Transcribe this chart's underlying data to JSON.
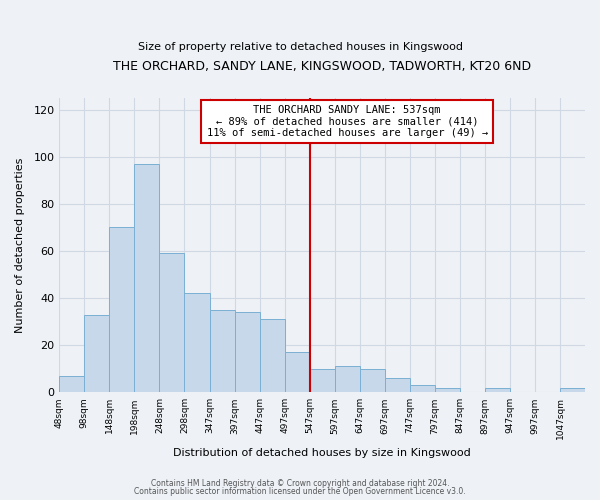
{
  "title": "THE ORCHARD, SANDY LANE, KINGSWOOD, TADWORTH, KT20 6ND",
  "subtitle": "Size of property relative to detached houses in Kingswood",
  "xlabel": "Distribution of detached houses by size in Kingswood",
  "ylabel": "Number of detached properties",
  "bar_color": "#c8d8eb",
  "bar_edge_color": "#7ab0d4",
  "bins": [
    "48sqm",
    "98sqm",
    "148sqm",
    "198sqm",
    "248sqm",
    "298sqm",
    "347sqm",
    "397sqm",
    "447sqm",
    "497sqm",
    "547sqm",
    "597sqm",
    "647sqm",
    "697sqm",
    "747sqm",
    "797sqm",
    "847sqm",
    "897sqm",
    "947sqm",
    "997sqm",
    "1047sqm"
  ],
  "values": [
    7,
    33,
    70,
    97,
    59,
    42,
    35,
    34,
    31,
    17,
    10,
    11,
    10,
    6,
    3,
    2,
    0,
    2,
    0,
    0,
    2
  ],
  "marker_label": "THE ORCHARD SANDY LANE: 537sqm",
  "annotation_line1": "← 89% of detached houses are smaller (414)",
  "annotation_line2": "11% of semi-detached houses are larger (49) →",
  "vline_color": "#cc0000",
  "vline_x_index": 10,
  "ylim": [
    0,
    125
  ],
  "yticks": [
    0,
    20,
    40,
    60,
    80,
    100,
    120
  ],
  "background_color": "#eef2f7",
  "grid_color": "#d0d8e4",
  "footer_line1": "Contains HM Land Registry data © Crown copyright and database right 2024.",
  "footer_line2": "Contains public sector information licensed under the Open Government Licence v3.0."
}
